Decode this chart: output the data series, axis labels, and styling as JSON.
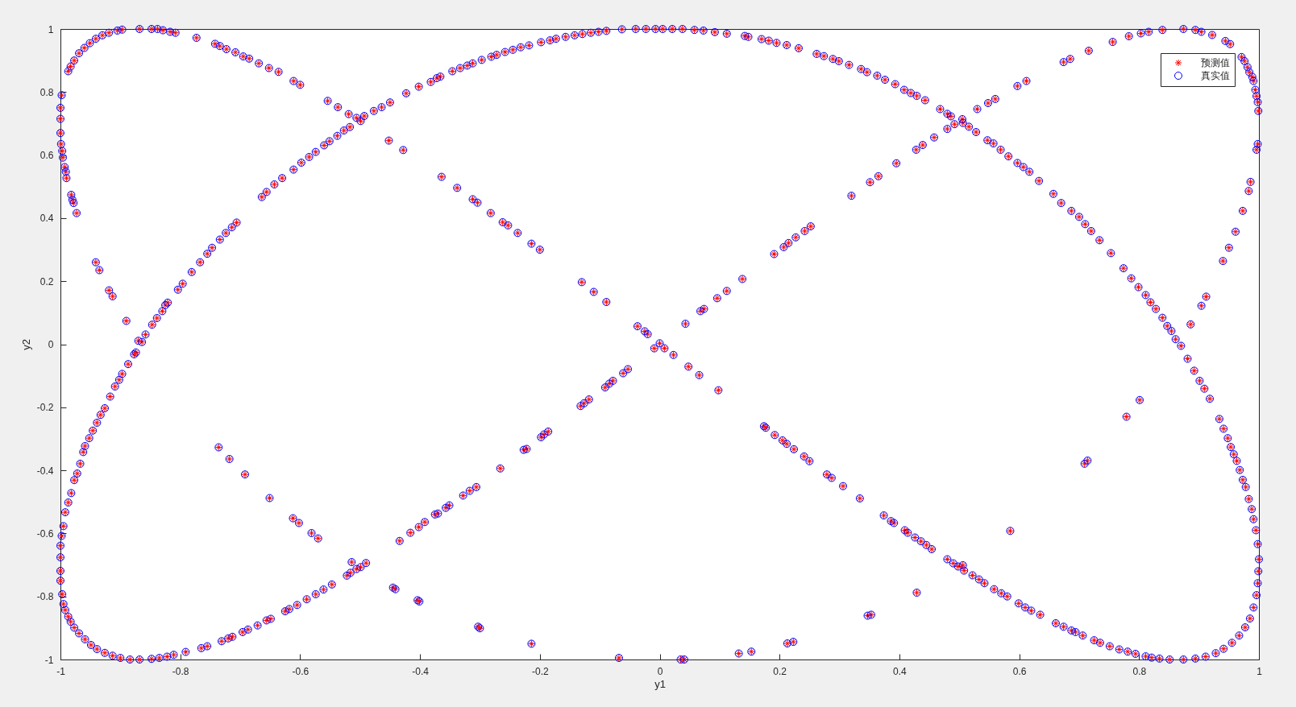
{
  "chart_data": {
    "type": "scatter",
    "xlabel": "y1",
    "ylabel": "y2",
    "xlim": [
      -1,
      1
    ],
    "ylim": [
      -1,
      1
    ],
    "xticks": [
      -1,
      -0.8,
      -0.6,
      -0.4,
      -0.2,
      0,
      0.2,
      0.4,
      0.6,
      0.8,
      1
    ],
    "yticks": [
      -1,
      -0.8,
      -0.6,
      -0.4,
      -0.2,
      0,
      0.2,
      0.4,
      0.6,
      0.8,
      1
    ],
    "legend": "top right",
    "x": [
      -0.998,
      -1,
      -1,
      -1,
      -0.999,
      -0.997,
      -0.996,
      -0.993,
      -0.991,
      -0.99,
      -0.982,
      -0.98,
      -0.978,
      -0.973,
      -0.987,
      -0.983,
      -0.977,
      -0.969,
      -0.96,
      -0.951,
      -0.941,
      -0.93,
      -0.919,
      -0.905,
      -0.897,
      -0.868,
      -0.848,
      -0.838,
      -0.829,
      -0.817,
      -0.808,
      -0.773,
      -0.742,
      -0.734,
      -0.723,
      -0.708,
      -0.695,
      -0.685,
      -0.669,
      -0.652,
      -0.636,
      -0.611,
      -0.6,
      -0.554,
      -0.537,
      -0.519,
      -0.506,
      -0.499,
      -0.452,
      -0.428,
      -0.364,
      -0.338,
      -0.312,
      -0.304,
      -0.282,
      -0.262,
      -0.253,
      -0.237,
      -0.214,
      -0.2,
      -0.13,
      -0.11,
      -0.089,
      -0.037,
      -0.025,
      -0.02,
      -0.858,
      -0.847,
      -0.839,
      -0.83,
      -0.825,
      -0.821,
      -0.804,
      -0.796,
      -0.781,
      -0.767,
      -0.755,
      -0.747,
      -0.734,
      -0.724,
      -0.714,
      -0.706,
      -0.664,
      -0.656,
      -0.643,
      -0.63,
      -0.611,
      -0.598,
      -0.585,
      -0.574,
      -0.56,
      -0.551,
      -0.538,
      -0.527,
      -0.517,
      -0.493,
      -0.477,
      -0.464,
      -0.45,
      -0.423,
      -0.402,
      -0.382,
      -0.372,
      -0.366,
      -0.346,
      -0.333,
      -0.321,
      -0.312,
      -0.297,
      -0.281,
      -0.272,
      -0.258,
      -0.245,
      -0.232,
      -0.218,
      -0.198,
      -0.183,
      -0.173,
      -0.157,
      -0.142,
      -0.129,
      -0.115,
      -0.102,
      -0.089,
      -0.063,
      -0.04,
      -0.023,
      -0.007,
      -0.941,
      -0.935,
      -0.919,
      -0.913,
      -0.89,
      0.005,
      0.021,
      0.038,
      0.058,
      0.073,
      0.092,
      0.112,
      0.142,
      0.148,
      0.17,
      0.182,
      0.195,
      0.212,
      0.232,
      0.262,
      0.274,
      0.289,
      0.299,
      0.316,
      0.336,
      0.346,
      0.363,
      0.376,
      0.393,
      0.408,
      0.419,
      0.429,
      0.443,
      0.468,
      0.48,
      0.486,
      0.506,
      0.516,
      0.528,
      0.547,
      0.557,
      0.569,
      0.582,
      0.597,
      0.607,
      0.617,
      0.633,
      0.657,
      0.67,
      0.687,
      0.7,
      0.71,
      0.72,
      0.734,
      0.753,
      0.774,
      0.787,
      0.799,
      0.811,
      0.819,
      0.828,
      0.839,
      0.847,
      0.854,
      0.861,
      0.87,
      -0.009,
      0,
      0.043,
      0.068,
      0.074,
      0.096,
      0.112,
      0.138,
      0.191,
      0.207,
      0.215,
      0.227,
      0.242,
      0.252,
      0.32,
      0.351,
      0.365,
      0.395,
      0.428,
      0.439,
      0.458,
      0.48,
      0.492,
      0.505,
      0.53,
      0.548,
      0.56,
      0.597,
      0.612,
      0.674,
      0.685,
      0.716,
      0.756,
      0.783,
      0.803,
      0.816,
      0.839,
      0.874,
      0.894,
      0.904,
      0.922,
      0.944,
      0.952,
      0.971,
      0.976,
      0.981,
      0.984,
      0.989,
      0.991,
      0.994,
      0.996,
      0.998,
      0.999,
      0.998,
      0.996,
      0.986,
      0.983,
      0.973,
      0.961,
      0.95,
      0.94,
      0.912,
      0.904,
      0.886,
      -0.87,
      -0.864,
      -0.874,
      -0.877,
      -0.887,
      -0.897,
      -0.902,
      -0.909,
      -0.917,
      -0.926,
      -0.933,
      -0.939,
      -0.946,
      -0.952,
      -0.959,
      -0.962,
      -0.967,
      -0.972,
      -0.977,
      -0.982,
      -0.987,
      -0.992,
      -0.995,
      -0.998,
      -1,
      -1,
      -1,
      -1,
      -0.997,
      -0.995,
      -0.992,
      -0.987,
      -0.983,
      -0.977,
      -0.969,
      -0.959,
      -0.949,
      -0.939,
      -0.926,
      -0.913,
      -0.9,
      -0.884,
      -0.868,
      -0.848,
      -0.835,
      -0.822,
      -0.811,
      -0.791,
      -0.765,
      -0.755,
      -0.731,
      -0.72,
      -0.713,
      -0.696,
      -0.687,
      -0.671,
      -0.656,
      -0.649,
      -0.625,
      -0.618,
      -0.605,
      -0.589,
      -0.574,
      -0.561,
      -0.547,
      -0.522,
      -0.516,
      -0.506,
      -0.499,
      -0.49,
      -0.434,
      -0.416,
      -0.402,
      -0.392,
      -0.375,
      -0.37,
      -0.357,
      -0.351,
      -0.328,
      -0.317,
      -0.306,
      -0.266,
      -0.227,
      -0.222,
      -0.198,
      -0.193,
      -0.186,
      -0.132,
      -0.126,
      -0.118,
      -0.091,
      -0.084,
      -0.078,
      -0.061,
      -0.053,
      -0.736,
      -0.718,
      -0.692,
      -0.651,
      -0.612,
      -0.602,
      -0.581,
      -0.57,
      -0.514,
      -0.445,
      -0.441,
      -0.404,
      -0.401,
      -0.303,
      -0.3,
      -0.214,
      -0.068,
      0.008,
      0.023,
      0.048,
      0.066,
      0.098,
      0.174,
      0.177,
      0.192,
      0.205,
      0.212,
      0.224,
      0.241,
      0.25,
      0.279,
      0.287,
      0.306,
      0.334,
      0.374,
      0.386,
      0.391,
      0.409,
      0.414,
      0.426,
      0.436,
      0.445,
      0.454,
      0.48,
      0.49,
      0.498,
      0.506,
      0.508,
      0.522,
      0.533,
      0.542,
      0.558,
      0.57,
      0.58,
      0.599,
      0.61,
      0.62,
      0.635,
      0.661,
      0.674,
      0.687,
      0.694,
      0.706,
      0.725,
      0.735,
      0.751,
      0.767,
      0.781,
      0.794,
      0.811,
      0.821,
      0.834,
      0.851,
      0.874,
      0.894,
      0.911,
      0.928,
      0.941,
      0.955,
      0.967,
      0.977,
      0.985,
      0.991,
      0.996,
      0.998,
      0.999,
      1,
      0.998,
      0.995,
      0.991,
      0.988,
      0.983,
      0.978,
      0.973,
      0.968,
      0.963,
      0.958,
      0.953,
      0.948,
      0.941,
      0.934,
      0.918,
      0.909,
      0.901,
      0.892,
      0.881,
      0.035,
      0.041,
      0.132,
      0.153,
      0.213,
      0.223,
      0.347,
      0.353,
      0.429,
      0.585,
      0.709,
      0.714,
      0.779,
      0.801
    ],
    "series": [
      {
        "name": "预测值",
        "color": "#ff0000",
        "marker": "cross",
        "values": [
          0.79,
          0.75,
          0.715,
          0.67,
          0.635,
          0.613,
          0.592,
          0.562,
          0.547,
          0.527,
          0.474,
          0.458,
          0.448,
          0.416,
          0.866,
          0.881,
          0.9,
          0.923,
          0.94,
          0.955,
          0.969,
          0.98,
          0.988,
          0.995,
          0.998,
          1,
          1,
          1,
          0.996,
          0.991,
          0.988,
          0.972,
          0.953,
          0.946,
          0.936,
          0.926,
          0.913,
          0.906,
          0.891,
          0.876,
          0.864,
          0.835,
          0.823,
          0.772,
          0.752,
          0.73,
          0.718,
          0.708,
          0.646,
          0.616,
          0.531,
          0.496,
          0.46,
          0.449,
          0.416,
          0.387,
          0.377,
          0.353,
          0.319,
          0.3,
          0.197,
          0.166,
          0.134,
          0.057,
          0.041,
          0.032,
          0.031,
          0.062,
          0.083,
          0.105,
          0.124,
          0.132,
          0.173,
          0.192,
          0.229,
          0.26,
          0.287,
          0.306,
          0.332,
          0.353,
          0.371,
          0.386,
          0.467,
          0.483,
          0.507,
          0.527,
          0.554,
          0.576,
          0.594,
          0.61,
          0.631,
          0.644,
          0.661,
          0.678,
          0.689,
          0.724,
          0.74,
          0.752,
          0.767,
          0.796,
          0.817,
          0.832,
          0.844,
          0.849,
          0.866,
          0.876,
          0.884,
          0.891,
          0.902,
          0.912,
          0.918,
          0.927,
          0.934,
          0.942,
          0.948,
          0.958,
          0.964,
          0.969,
          0.975,
          0.98,
          0.984,
          0.988,
          0.991,
          0.994,
          0.999,
          1,
          1,
          1,
          0.26,
          0.235,
          0.171,
          0.152,
          0.074,
          1,
          1,
          1,
          0.997,
          0.995,
          0.99,
          0.985,
          0.978,
          0.975,
          0.968,
          0.963,
          0.956,
          0.949,
          0.939,
          0.921,
          0.914,
          0.905,
          0.898,
          0.886,
          0.873,
          0.863,
          0.852,
          0.839,
          0.825,
          0.807,
          0.797,
          0.788,
          0.774,
          0.746,
          0.731,
          0.723,
          0.702,
          0.69,
          0.673,
          0.647,
          0.637,
          0.617,
          0.596,
          0.575,
          0.562,
          0.547,
          0.518,
          0.477,
          0.448,
          0.423,
          0.404,
          0.381,
          0.359,
          0.33,
          0.289,
          0.241,
          0.209,
          0.181,
          0.156,
          0.133,
          0.112,
          0.084,
          0.058,
          0.042,
          0.016,
          -0.005,
          -0.013,
          0.003,
          0.065,
          0.105,
          0.112,
          0.146,
          0.169,
          0.207,
          0.286,
          0.308,
          0.321,
          0.339,
          0.359,
          0.374,
          0.471,
          0.514,
          0.533,
          0.574,
          0.617,
          0.632,
          0.656,
          0.683,
          0.698,
          0.714,
          0.746,
          0.765,
          0.778,
          0.819,
          0.835,
          0.895,
          0.905,
          0.931,
          0.959,
          0.977,
          0.986,
          0.991,
          0.997,
          1,
          0.997,
          0.991,
          0.981,
          0.962,
          0.952,
          0.911,
          0.898,
          0.879,
          0.863,
          0.848,
          0.835,
          0.807,
          0.787,
          0.768,
          0.74,
          0.635,
          0.617,
          0.515,
          0.486,
          0.423,
          0.357,
          0.306,
          0.264,
          0.151,
          0.122,
          0.063,
          0.011,
          0.007,
          -0.026,
          -0.032,
          -0.063,
          -0.094,
          -0.113,
          -0.134,
          -0.166,
          -0.203,
          -0.224,
          -0.249,
          -0.274,
          -0.298,
          -0.323,
          -0.342,
          -0.379,
          -0.41,
          -0.431,
          -0.472,
          -0.502,
          -0.533,
          -0.577,
          -0.608,
          -0.639,
          -0.676,
          -0.719,
          -0.75,
          -0.793,
          -0.824,
          -0.843,
          -0.864,
          -0.88,
          -0.899,
          -0.917,
          -0.936,
          -0.954,
          -0.967,
          -0.979,
          -0.988,
          -0.995,
          -1,
          -1,
          -0.998,
          -0.995,
          -0.991,
          -0.985,
          -0.976,
          -0.964,
          -0.958,
          -0.942,
          -0.933,
          -0.928,
          -0.913,
          -0.905,
          -0.892,
          -0.876,
          -0.871,
          -0.847,
          -0.84,
          -0.827,
          -0.809,
          -0.793,
          -0.778,
          -0.762,
          -0.734,
          -0.725,
          -0.713,
          -0.707,
          -0.694,
          -0.624,
          -0.598,
          -0.58,
          -0.564,
          -0.54,
          -0.537,
          -0.519,
          -0.511,
          -0.48,
          -0.465,
          -0.453,
          -0.394,
          -0.335,
          -0.332,
          -0.295,
          -0.286,
          -0.277,
          -0.196,
          -0.187,
          -0.175,
          -0.137,
          -0.125,
          -0.116,
          -0.092,
          -0.079,
          -0.327,
          -0.364,
          -0.413,
          -0.488,
          -0.552,
          -0.567,
          -0.599,
          -0.616,
          -0.691,
          -0.772,
          -0.777,
          -0.812,
          -0.816,
          -0.896,
          -0.901,
          -0.95,
          -0.995,
          -0.013,
          -0.034,
          -0.071,
          -0.098,
          -0.146,
          -0.26,
          -0.265,
          -0.288,
          -0.305,
          -0.316,
          -0.333,
          -0.356,
          -0.371,
          -0.413,
          -0.424,
          -0.45,
          -0.489,
          -0.543,
          -0.561,
          -0.567,
          -0.59,
          -0.598,
          -0.613,
          -0.625,
          -0.637,
          -0.65,
          -0.682,
          -0.695,
          -0.705,
          -0.701,
          -0.718,
          -0.733,
          -0.746,
          -0.758,
          -0.777,
          -0.79,
          -0.8,
          -0.822,
          -0.835,
          -0.845,
          -0.858,
          -0.885,
          -0.896,
          -0.908,
          -0.913,
          -0.924,
          -0.939,
          -0.947,
          -0.958,
          -0.968,
          -0.975,
          -0.982,
          -0.99,
          -0.994,
          -0.997,
          -1,
          -1,
          -0.997,
          -0.991,
          -0.98,
          -0.966,
          -0.947,
          -0.924,
          -0.898,
          -0.87,
          -0.835,
          -0.796,
          -0.758,
          -0.72,
          -0.682,
          -0.634,
          -0.59,
          -0.555,
          -0.523,
          -0.491,
          -0.453,
          -0.43,
          -0.399,
          -0.37,
          -0.349,
          -0.326,
          -0.298,
          -0.268,
          -0.237,
          -0.173,
          -0.141,
          -0.116,
          -0.084,
          -0.046,
          -1,
          -1,
          -0.981,
          -0.975,
          -0.949,
          -0.944,
          -0.861,
          -0.858,
          -0.788,
          -0.592,
          -0.379,
          -0.369,
          -0.23,
          -0.177
        ]
      },
      {
        "name": "真实值",
        "color": "#0000ff",
        "marker": "circle",
        "values": [
          0.79,
          0.75,
          0.715,
          0.67,
          0.635,
          0.613,
          0.592,
          0.562,
          0.547,
          0.527,
          0.474,
          0.458,
          0.448,
          0.416,
          0.866,
          0.881,
          0.9,
          0.923,
          0.94,
          0.955,
          0.969,
          0.98,
          0.988,
          0.995,
          0.998,
          1,
          1,
          1,
          0.996,
          0.991,
          0.988,
          0.972,
          0.953,
          0.946,
          0.936,
          0.926,
          0.913,
          0.906,
          0.891,
          0.876,
          0.864,
          0.835,
          0.823,
          0.772,
          0.752,
          0.73,
          0.718,
          0.708,
          0.646,
          0.616,
          0.531,
          0.496,
          0.46,
          0.449,
          0.416,
          0.387,
          0.377,
          0.353,
          0.319,
          0.3,
          0.197,
          0.166,
          0.134,
          0.057,
          0.041,
          0.032,
          0.031,
          0.062,
          0.083,
          0.105,
          0.124,
          0.132,
          0.173,
          0.192,
          0.229,
          0.26,
          0.287,
          0.306,
          0.332,
          0.353,
          0.371,
          0.386,
          0.467,
          0.483,
          0.507,
          0.527,
          0.554,
          0.576,
          0.594,
          0.61,
          0.631,
          0.644,
          0.661,
          0.678,
          0.689,
          0.724,
          0.74,
          0.752,
          0.767,
          0.796,
          0.817,
          0.832,
          0.844,
          0.849,
          0.866,
          0.876,
          0.884,
          0.891,
          0.902,
          0.912,
          0.918,
          0.927,
          0.934,
          0.942,
          0.948,
          0.958,
          0.964,
          0.969,
          0.975,
          0.98,
          0.984,
          0.988,
          0.991,
          0.994,
          0.999,
          1,
          1,
          1,
          0.26,
          0.235,
          0.171,
          0.152,
          0.074,
          1,
          1,
          1,
          0.997,
          0.995,
          0.99,
          0.985,
          0.978,
          0.975,
          0.968,
          0.963,
          0.956,
          0.949,
          0.939,
          0.921,
          0.914,
          0.905,
          0.898,
          0.886,
          0.873,
          0.863,
          0.852,
          0.839,
          0.825,
          0.807,
          0.797,
          0.788,
          0.774,
          0.746,
          0.731,
          0.723,
          0.702,
          0.69,
          0.673,
          0.647,
          0.637,
          0.617,
          0.596,
          0.575,
          0.562,
          0.547,
          0.518,
          0.477,
          0.448,
          0.423,
          0.404,
          0.381,
          0.359,
          0.33,
          0.289,
          0.241,
          0.209,
          0.181,
          0.156,
          0.133,
          0.112,
          0.084,
          0.058,
          0.042,
          0.016,
          -0.005,
          -0.013,
          0.003,
          0.065,
          0.105,
          0.112,
          0.146,
          0.169,
          0.207,
          0.286,
          0.308,
          0.321,
          0.339,
          0.359,
          0.374,
          0.471,
          0.514,
          0.533,
          0.574,
          0.617,
          0.632,
          0.656,
          0.683,
          0.698,
          0.714,
          0.746,
          0.765,
          0.778,
          0.819,
          0.835,
          0.895,
          0.905,
          0.931,
          0.959,
          0.977,
          0.986,
          0.991,
          0.997,
          1,
          0.997,
          0.991,
          0.981,
          0.962,
          0.952,
          0.911,
          0.898,
          0.879,
          0.863,
          0.848,
          0.835,
          0.807,
          0.787,
          0.768,
          0.74,
          0.635,
          0.617,
          0.515,
          0.486,
          0.423,
          0.357,
          0.306,
          0.264,
          0.151,
          0.122,
          0.063,
          0.011,
          0.007,
          -0.026,
          -0.032,
          -0.063,
          -0.094,
          -0.113,
          -0.134,
          -0.166,
          -0.203,
          -0.224,
          -0.249,
          -0.274,
          -0.298,
          -0.323,
          -0.342,
          -0.379,
          -0.41,
          -0.431,
          -0.472,
          -0.502,
          -0.533,
          -0.577,
          -0.608,
          -0.639,
          -0.676,
          -0.719,
          -0.75,
          -0.793,
          -0.824,
          -0.843,
          -0.864,
          -0.88,
          -0.899,
          -0.917,
          -0.936,
          -0.954,
          -0.967,
          -0.979,
          -0.988,
          -0.995,
          -1,
          -1,
          -0.998,
          -0.995,
          -0.991,
          -0.985,
          -0.976,
          -0.964,
          -0.958,
          -0.942,
          -0.933,
          -0.928,
          -0.913,
          -0.905,
          -0.892,
          -0.876,
          -0.871,
          -0.847,
          -0.84,
          -0.827,
          -0.809,
          -0.793,
          -0.778,
          -0.762,
          -0.734,
          -0.725,
          -0.713,
          -0.707,
          -0.694,
          -0.624,
          -0.598,
          -0.58,
          -0.564,
          -0.54,
          -0.537,
          -0.519,
          -0.511,
          -0.48,
          -0.465,
          -0.453,
          -0.394,
          -0.335,
          -0.332,
          -0.295,
          -0.286,
          -0.277,
          -0.196,
          -0.187,
          -0.175,
          -0.137,
          -0.125,
          -0.116,
          -0.092,
          -0.079,
          -0.327,
          -0.364,
          -0.413,
          -0.488,
          -0.552,
          -0.567,
          -0.599,
          -0.616,
          -0.691,
          -0.772,
          -0.777,
          -0.812,
          -0.816,
          -0.896,
          -0.901,
          -0.95,
          -0.995,
          -0.013,
          -0.034,
          -0.071,
          -0.098,
          -0.146,
          -0.26,
          -0.265,
          -0.288,
          -0.305,
          -0.316,
          -0.333,
          -0.356,
          -0.371,
          -0.413,
          -0.424,
          -0.45,
          -0.489,
          -0.543,
          -0.561,
          -0.567,
          -0.59,
          -0.598,
          -0.613,
          -0.625,
          -0.637,
          -0.65,
          -0.682,
          -0.695,
          -0.705,
          -0.701,
          -0.718,
          -0.733,
          -0.746,
          -0.758,
          -0.777,
          -0.79,
          -0.8,
          -0.822,
          -0.835,
          -0.845,
          -0.858,
          -0.885,
          -0.896,
          -0.908,
          -0.913,
          -0.924,
          -0.939,
          -0.947,
          -0.958,
          -0.968,
          -0.975,
          -0.982,
          -0.99,
          -0.994,
          -0.997,
          -1,
          -1,
          -0.997,
          -0.991,
          -0.98,
          -0.966,
          -0.947,
          -0.924,
          -0.898,
          -0.87,
          -0.835,
          -0.796,
          -0.758,
          -0.72,
          -0.682,
          -0.634,
          -0.59,
          -0.555,
          -0.523,
          -0.491,
          -0.453,
          -0.43,
          -0.399,
          -0.37,
          -0.349,
          -0.326,
          -0.298,
          -0.268,
          -0.237,
          -0.173,
          -0.141,
          -0.116,
          -0.084,
          -0.046,
          -1,
          -1,
          -0.981,
          -0.975,
          -0.949,
          -0.944,
          -0.861,
          -0.858,
          -0.788,
          -0.592,
          -0.379,
          -0.369,
          -0.23,
          -0.177
        ]
      }
    ]
  }
}
